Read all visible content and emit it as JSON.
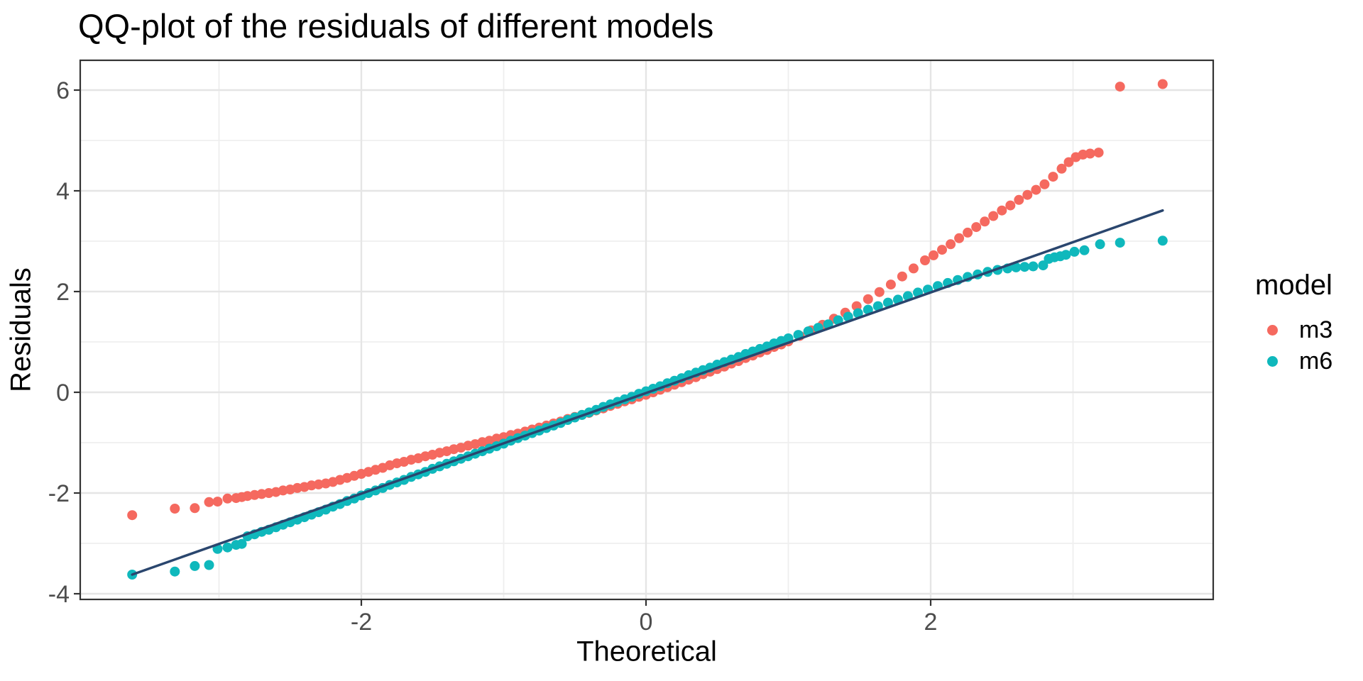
{
  "title": "QQ-plot of the residuals of different models",
  "axes": {
    "x": {
      "label": "Theoretical",
      "ticks": [
        -2,
        0,
        2
      ]
    },
    "y": {
      "label": "Residuals",
      "ticks": [
        -4,
        -2,
        0,
        2,
        4,
        6
      ]
    }
  },
  "legend": {
    "title": "model",
    "items": [
      {
        "label": "m3",
        "color": "#F5695F"
      },
      {
        "label": "m6",
        "color": "#0FB8BC"
      }
    ]
  },
  "colors": {
    "panel_bg": "#FFFFFF",
    "panel_border": "#333333",
    "grid_major": "#E5E5E5",
    "grid_minor": "#EFEFEF",
    "tick": "#333333",
    "tick_label": "#4D4D4D",
    "ref_line": "#2A466E"
  },
  "chart_data": {
    "type": "scatter",
    "title": "QQ-plot of the residuals of different models",
    "xlabel": "Theoretical",
    "ylabel": "Residuals",
    "xlim": [
      -3.975,
      3.985
    ],
    "ylim": [
      -4.113,
      6.592
    ],
    "x_major_gridlines": [
      -2,
      0,
      2
    ],
    "x_minor_gridlines": [
      -3,
      -1,
      1,
      3
    ],
    "y_major_gridlines": [
      -4,
      -2,
      0,
      2,
      4,
      6
    ],
    "y_minor_gridlines": [
      -3,
      -1,
      1,
      3,
      5
    ],
    "grid": true,
    "legend_position": "right",
    "ref_line": {
      "from": [
        -3.61,
        -3.62
      ],
      "to": [
        3.63,
        3.61
      ],
      "color": "#2A466E"
    },
    "series": [
      {
        "name": "m3",
        "color": "#F5695F",
        "points": [
          [
            -3.61,
            -2.44
          ],
          [
            -3.31,
            -2.31
          ],
          [
            -3.17,
            -2.3
          ],
          [
            -3.07,
            -2.18
          ],
          [
            -3.01,
            -2.17
          ],
          [
            -2.94,
            -2.11
          ],
          [
            -2.88,
            -2.1
          ],
          [
            -2.84,
            -2.08
          ],
          [
            -2.8,
            -2.06
          ],
          [
            -2.75,
            -2.04
          ],
          [
            -2.7,
            -2.02
          ],
          [
            -2.65,
            -2.0
          ],
          [
            -2.6,
            -1.98
          ],
          [
            -2.55,
            -1.95
          ],
          [
            -2.5,
            -1.93
          ],
          [
            -2.45,
            -1.9
          ],
          [
            -2.4,
            -1.88
          ],
          [
            -2.35,
            -1.85
          ],
          [
            -2.3,
            -1.83
          ],
          [
            -2.25,
            -1.81
          ],
          [
            -2.2,
            -1.78
          ],
          [
            -2.15,
            -1.74
          ],
          [
            -2.1,
            -1.7
          ],
          [
            -2.05,
            -1.66
          ],
          [
            -2.0,
            -1.62
          ],
          [
            -1.95,
            -1.58
          ],
          [
            -1.9,
            -1.54
          ],
          [
            -1.85,
            -1.5
          ],
          [
            -1.8,
            -1.45
          ],
          [
            -1.75,
            -1.41
          ],
          [
            -1.7,
            -1.38
          ],
          [
            -1.65,
            -1.34
          ],
          [
            -1.6,
            -1.31
          ],
          [
            -1.55,
            -1.27
          ],
          [
            -1.5,
            -1.24
          ],
          [
            -1.45,
            -1.2
          ],
          [
            -1.4,
            -1.17
          ],
          [
            -1.35,
            -1.13
          ],
          [
            -1.3,
            -1.1
          ],
          [
            -1.25,
            -1.06
          ],
          [
            -1.2,
            -1.03
          ],
          [
            -1.15,
            -0.99
          ],
          [
            -1.1,
            -0.96
          ],
          [
            -1.05,
            -0.92
          ],
          [
            -1.0,
            -0.89
          ],
          [
            -0.95,
            -0.85
          ],
          [
            -0.9,
            -0.82
          ],
          [
            -0.85,
            -0.78
          ],
          [
            -0.8,
            -0.74
          ],
          [
            -0.75,
            -0.7
          ],
          [
            -0.7,
            -0.66
          ],
          [
            -0.65,
            -0.62
          ],
          [
            -0.6,
            -0.58
          ],
          [
            -0.55,
            -0.53
          ],
          [
            -0.5,
            -0.49
          ],
          [
            -0.45,
            -0.45
          ],
          [
            -0.4,
            -0.41
          ],
          [
            -0.35,
            -0.36
          ],
          [
            -0.3,
            -0.32
          ],
          [
            -0.25,
            -0.27
          ],
          [
            -0.2,
            -0.23
          ],
          [
            -0.15,
            -0.18
          ],
          [
            -0.1,
            -0.14
          ],
          [
            -0.05,
            -0.09
          ],
          [
            0.0,
            -0.05
          ],
          [
            0.05,
            0.0
          ],
          [
            0.1,
            0.05
          ],
          [
            0.15,
            0.1
          ],
          [
            0.2,
            0.15
          ],
          [
            0.25,
            0.2
          ],
          [
            0.3,
            0.25
          ],
          [
            0.35,
            0.3
          ],
          [
            0.4,
            0.36
          ],
          [
            0.45,
            0.41
          ],
          [
            0.5,
            0.46
          ],
          [
            0.55,
            0.51
          ],
          [
            0.6,
            0.57
          ],
          [
            0.65,
            0.62
          ],
          [
            0.7,
            0.68
          ],
          [
            0.75,
            0.73
          ],
          [
            0.8,
            0.79
          ],
          [
            0.85,
            0.84
          ],
          [
            0.9,
            0.9
          ],
          [
            0.95,
            0.95
          ],
          [
            1.0,
            1.01
          ],
          [
            1.08,
            1.12
          ],
          [
            1.16,
            1.23
          ],
          [
            1.24,
            1.34
          ],
          [
            1.32,
            1.46
          ],
          [
            1.4,
            1.58
          ],
          [
            1.48,
            1.71
          ],
          [
            1.56,
            1.85
          ],
          [
            1.64,
            1.99
          ],
          [
            1.72,
            2.14
          ],
          [
            1.8,
            2.3
          ],
          [
            1.88,
            2.46
          ],
          [
            1.96,
            2.62
          ],
          [
            2.02,
            2.72
          ],
          [
            2.08,
            2.83
          ],
          [
            2.14,
            2.94
          ],
          [
            2.2,
            3.06
          ],
          [
            2.26,
            3.17
          ],
          [
            2.32,
            3.28
          ],
          [
            2.38,
            3.39
          ],
          [
            2.44,
            3.5
          ],
          [
            2.5,
            3.61
          ],
          [
            2.56,
            3.71
          ],
          [
            2.62,
            3.82
          ],
          [
            2.68,
            3.92
          ],
          [
            2.74,
            4.02
          ],
          [
            2.8,
            4.13
          ],
          [
            2.86,
            4.28
          ],
          [
            2.92,
            4.44
          ],
          [
            2.97,
            4.57
          ],
          [
            3.02,
            4.67
          ],
          [
            3.07,
            4.72
          ],
          [
            3.12,
            4.74
          ],
          [
            3.18,
            4.76
          ],
          [
            3.33,
            6.07
          ],
          [
            3.63,
            6.12
          ]
        ]
      },
      {
        "name": "m6",
        "color": "#0FB8BC",
        "points": [
          [
            -3.61,
            -3.62
          ],
          [
            -3.31,
            -3.56
          ],
          [
            -3.17,
            -3.45
          ],
          [
            -3.07,
            -3.43
          ],
          [
            -3.01,
            -3.11
          ],
          [
            -2.94,
            -3.08
          ],
          [
            -2.88,
            -3.03
          ],
          [
            -2.84,
            -3.01
          ],
          [
            -2.8,
            -2.86
          ],
          [
            -2.75,
            -2.82
          ],
          [
            -2.7,
            -2.77
          ],
          [
            -2.65,
            -2.73
          ],
          [
            -2.6,
            -2.68
          ],
          [
            -2.55,
            -2.63
          ],
          [
            -2.5,
            -2.58
          ],
          [
            -2.45,
            -2.53
          ],
          [
            -2.4,
            -2.48
          ],
          [
            -2.35,
            -2.43
          ],
          [
            -2.3,
            -2.38
          ],
          [
            -2.25,
            -2.33
          ],
          [
            -2.2,
            -2.27
          ],
          [
            -2.15,
            -2.22
          ],
          [
            -2.1,
            -2.16
          ],
          [
            -2.05,
            -2.11
          ],
          [
            -2.0,
            -2.05
          ],
          [
            -1.95,
            -2.0
          ],
          [
            -1.9,
            -1.95
          ],
          [
            -1.85,
            -1.9
          ],
          [
            -1.8,
            -1.84
          ],
          [
            -1.75,
            -1.79
          ],
          [
            -1.7,
            -1.74
          ],
          [
            -1.65,
            -1.68
          ],
          [
            -1.6,
            -1.63
          ],
          [
            -1.55,
            -1.58
          ],
          [
            -1.5,
            -1.52
          ],
          [
            -1.45,
            -1.47
          ],
          [
            -1.4,
            -1.42
          ],
          [
            -1.35,
            -1.37
          ],
          [
            -1.3,
            -1.32
          ],
          [
            -1.25,
            -1.27
          ],
          [
            -1.2,
            -1.22
          ],
          [
            -1.15,
            -1.17
          ],
          [
            -1.1,
            -1.12
          ],
          [
            -1.05,
            -1.07
          ],
          [
            -1.0,
            -1.02
          ],
          [
            -0.95,
            -0.96
          ],
          [
            -0.9,
            -0.91
          ],
          [
            -0.85,
            -0.86
          ],
          [
            -0.8,
            -0.81
          ],
          [
            -0.75,
            -0.76
          ],
          [
            -0.7,
            -0.71
          ],
          [
            -0.65,
            -0.66
          ],
          [
            -0.6,
            -0.61
          ],
          [
            -0.55,
            -0.55
          ],
          [
            -0.5,
            -0.5
          ],
          [
            -0.45,
            -0.45
          ],
          [
            -0.4,
            -0.4
          ],
          [
            -0.35,
            -0.35
          ],
          [
            -0.3,
            -0.29
          ],
          [
            -0.25,
            -0.24
          ],
          [
            -0.2,
            -0.19
          ],
          [
            -0.15,
            -0.14
          ],
          [
            -0.1,
            -0.09
          ],
          [
            -0.05,
            -0.03
          ],
          [
            0.0,
            0.02
          ],
          [
            0.05,
            0.07
          ],
          [
            0.1,
            0.12
          ],
          [
            0.15,
            0.18
          ],
          [
            0.2,
            0.23
          ],
          [
            0.25,
            0.28
          ],
          [
            0.3,
            0.34
          ],
          [
            0.35,
            0.39
          ],
          [
            0.4,
            0.44
          ],
          [
            0.45,
            0.49
          ],
          [
            0.5,
            0.55
          ],
          [
            0.55,
            0.6
          ],
          [
            0.6,
            0.65
          ],
          [
            0.65,
            0.7
          ],
          [
            0.7,
            0.76
          ],
          [
            0.75,
            0.81
          ],
          [
            0.8,
            0.86
          ],
          [
            0.85,
            0.91
          ],
          [
            0.9,
            0.97
          ],
          [
            0.95,
            1.02
          ],
          [
            1.0,
            1.07
          ],
          [
            1.07,
            1.14
          ],
          [
            1.14,
            1.21
          ],
          [
            1.21,
            1.28
          ],
          [
            1.28,
            1.35
          ],
          [
            1.35,
            1.43
          ],
          [
            1.42,
            1.5
          ],
          [
            1.49,
            1.57
          ],
          [
            1.56,
            1.64
          ],
          [
            1.63,
            1.71
          ],
          [
            1.7,
            1.78
          ],
          [
            1.77,
            1.84
          ],
          [
            1.84,
            1.91
          ],
          [
            1.91,
            1.98
          ],
          [
            1.98,
            2.04
          ],
          [
            2.05,
            2.11
          ],
          [
            2.12,
            2.17
          ],
          [
            2.19,
            2.23
          ],
          [
            2.26,
            2.29
          ],
          [
            2.33,
            2.34
          ],
          [
            2.4,
            2.39
          ],
          [
            2.47,
            2.43
          ],
          [
            2.54,
            2.46
          ],
          [
            2.6,
            2.48
          ],
          [
            2.66,
            2.49
          ],
          [
            2.72,
            2.5
          ],
          [
            2.79,
            2.52
          ],
          [
            2.83,
            2.65
          ],
          [
            2.87,
            2.68
          ],
          [
            2.91,
            2.7
          ],
          [
            2.95,
            2.73
          ],
          [
            3.01,
            2.79
          ],
          [
            3.08,
            2.82
          ],
          [
            3.19,
            2.94
          ],
          [
            3.33,
            2.97
          ],
          [
            3.63,
            3.01
          ]
        ]
      }
    ]
  }
}
